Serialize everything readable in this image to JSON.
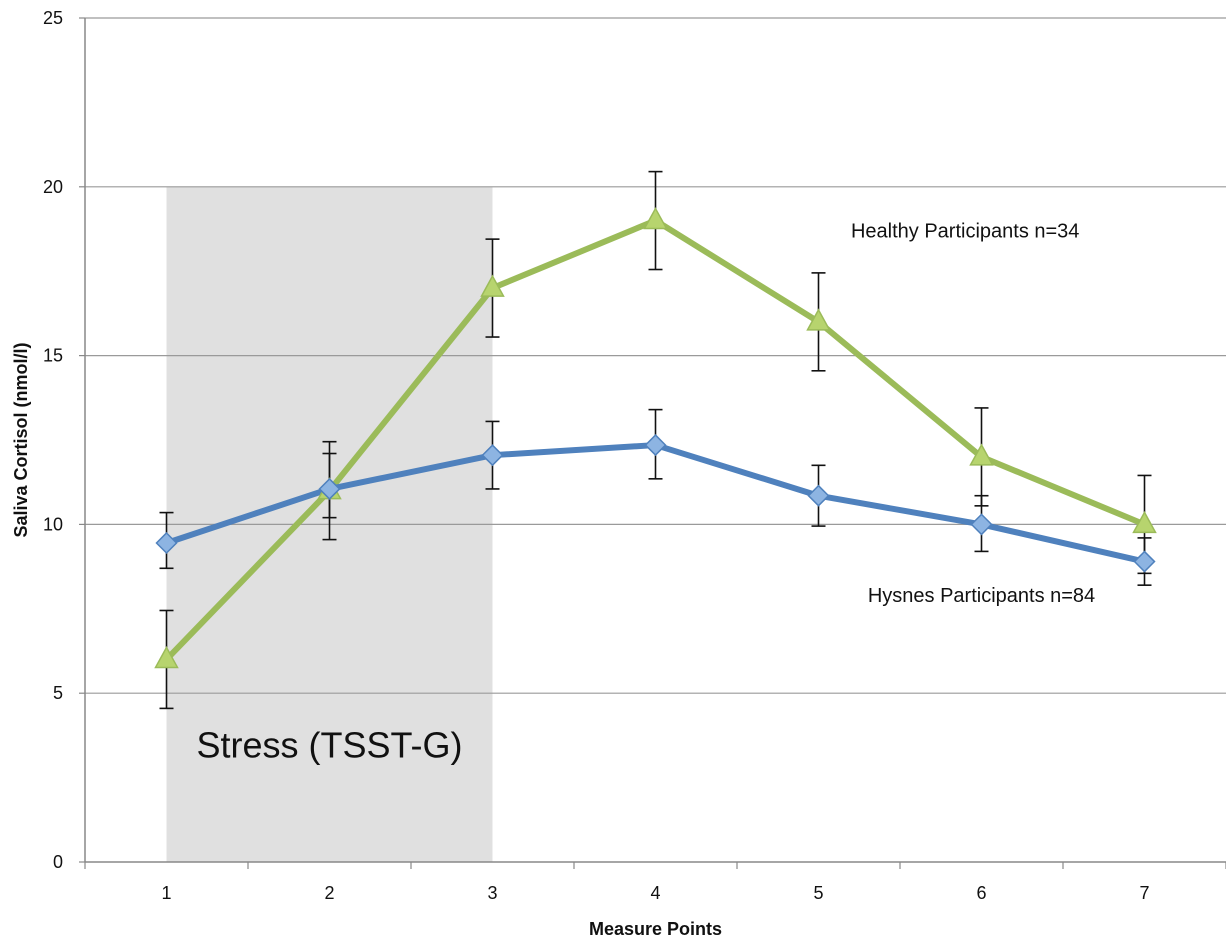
{
  "chart_data": {
    "type": "line",
    "xlabel": "Measure Points",
    "ylabel": "Saliva Cortisol (nmol/l)",
    "x": [
      1,
      2,
      3,
      4,
      5,
      6,
      7
    ],
    "xlim": [
      0.5,
      7.5
    ],
    "ylim": [
      0,
      25
    ],
    "yticks": [
      0,
      5,
      10,
      15,
      20,
      25
    ],
    "grid": "horizontal",
    "shaded_region": {
      "x_from": 1,
      "x_to": 3,
      "y_to": 20,
      "label": "Stress (TSST-G)",
      "color": "#e0e0e0"
    },
    "series": [
      {
        "key": "healthy",
        "values": [
          6.0,
          11.0,
          17.0,
          19.0,
          16.0,
          12.0,
          10.0
        ],
        "err_low": [
          4.55,
          9.55,
          15.55,
          17.55,
          14.55,
          10.55,
          8.55
        ],
        "err_high": [
          7.45,
          12.45,
          18.45,
          20.45,
          17.45,
          13.45,
          11.45
        ],
        "marker": "triangle",
        "color": "#9bbb59",
        "marker_color": "#b7d46e"
      },
      {
        "key": "hysnes",
        "values": [
          9.45,
          11.05,
          12.05,
          12.35,
          10.85,
          10.0,
          8.9
        ],
        "err_low": [
          8.7,
          10.2,
          11.05,
          11.35,
          9.95,
          9.2,
          8.2
        ],
        "err_high": [
          10.35,
          12.1,
          13.05,
          13.4,
          11.75,
          10.85,
          9.6
        ],
        "marker": "diamond",
        "color": "#4f81bd",
        "marker_color": "#8db4e2"
      }
    ],
    "annotations": [
      {
        "text": "Healthy Participants n=34",
        "x": 5.9,
        "y": 18.5
      },
      {
        "text": "Hysnes Participants n=84",
        "x": 6.0,
        "y": 7.7
      }
    ]
  }
}
